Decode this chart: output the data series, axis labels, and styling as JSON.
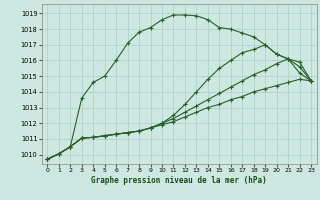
{
  "background_color": "#cce8e0",
  "grid_color": "#aacfc8",
  "line_color": "#2a5e2a",
  "title": "Graphe pression niveau de la mer (hPa)",
  "xlim": [
    -0.5,
    23.5
  ],
  "ylim": [
    1009.4,
    1019.6
  ],
  "yticks": [
    1010,
    1011,
    1012,
    1013,
    1014,
    1015,
    1016,
    1017,
    1018,
    1019
  ],
  "xticks": [
    0,
    1,
    2,
    3,
    4,
    5,
    6,
    7,
    8,
    9,
    10,
    11,
    12,
    13,
    14,
    15,
    16,
    17,
    18,
    19,
    20,
    21,
    22,
    23
  ],
  "series": [
    {
      "x": [
        0,
        1,
        2,
        3,
        4,
        5,
        6,
        7,
        8,
        9,
        10,
        11,
        12,
        13,
        14,
        15,
        16,
        17,
        18,
        19,
        20,
        21,
        22,
        23
      ],
      "y": [
        1009.7,
        1010.05,
        1010.5,
        1013.6,
        1014.6,
        1015.0,
        1016.0,
        1017.1,
        1017.8,
        1018.1,
        1018.6,
        1018.9,
        1018.9,
        1018.85,
        1018.6,
        1018.1,
        1018.0,
        1017.75,
        1017.5,
        1017.0,
        1016.4,
        1016.1,
        1015.2,
        1014.7
      ]
    },
    {
      "x": [
        0,
        1,
        2,
        3,
        4,
        5,
        6,
        7,
        8,
        9,
        10,
        11,
        12,
        13,
        14,
        15,
        16,
        17,
        18,
        19,
        20,
        21,
        22,
        23
      ],
      "y": [
        1009.7,
        1010.05,
        1010.5,
        1011.05,
        1011.1,
        1011.2,
        1011.3,
        1011.4,
        1011.5,
        1011.7,
        1012.0,
        1012.5,
        1013.2,
        1014.0,
        1014.8,
        1015.5,
        1016.0,
        1016.5,
        1016.7,
        1017.0,
        1016.4,
        1016.1,
        1015.6,
        1014.7
      ]
    },
    {
      "x": [
        0,
        1,
        2,
        3,
        4,
        5,
        6,
        7,
        8,
        9,
        10,
        11,
        12,
        13,
        14,
        15,
        16,
        17,
        18,
        19,
        20,
        21,
        22,
        23
      ],
      "y": [
        1009.7,
        1010.05,
        1010.5,
        1011.05,
        1011.1,
        1011.2,
        1011.3,
        1011.4,
        1011.5,
        1011.7,
        1012.0,
        1012.3,
        1012.7,
        1013.1,
        1013.5,
        1013.9,
        1014.3,
        1014.7,
        1015.1,
        1015.4,
        1015.8,
        1016.1,
        1015.9,
        1014.7
      ]
    },
    {
      "x": [
        0,
        1,
        2,
        3,
        4,
        5,
        6,
        7,
        8,
        9,
        10,
        11,
        12,
        13,
        14,
        15,
        16,
        17,
        18,
        19,
        20,
        21,
        22,
        23
      ],
      "y": [
        1009.7,
        1010.05,
        1010.5,
        1011.05,
        1011.1,
        1011.2,
        1011.3,
        1011.4,
        1011.5,
        1011.7,
        1011.9,
        1012.1,
        1012.4,
        1012.7,
        1013.0,
        1013.2,
        1013.5,
        1013.7,
        1014.0,
        1014.2,
        1014.4,
        1014.6,
        1014.8,
        1014.7
      ]
    }
  ]
}
